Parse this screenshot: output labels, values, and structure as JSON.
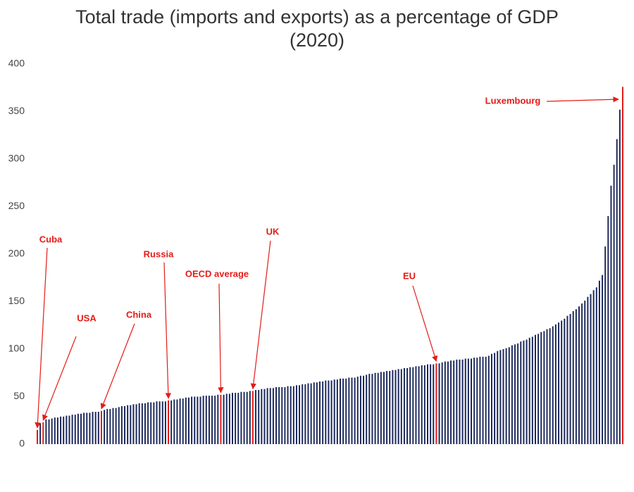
{
  "chart_data": {
    "type": "bar",
    "title": "Total trade (imports and exports) as a percentage of GDP (2020)",
    "color": "#1d2a5c",
    "highlight_color": "#e41b17",
    "values": [
      15,
      22,
      23,
      26,
      26,
      27,
      28,
      28,
      29,
      29,
      30,
      30,
      31,
      31,
      32,
      32,
      33,
      33,
      33,
      34,
      34,
      34,
      35,
      36,
      37,
      37,
      38,
      38,
      39,
      40,
      40,
      41,
      41,
      42,
      42,
      43,
      43,
      43,
      44,
      44,
      44,
      45,
      45,
      45,
      45,
      46,
      46,
      47,
      47,
      48,
      48,
      49,
      49,
      50,
      50,
      50,
      50,
      51,
      51,
      51,
      51,
      51,
      52,
      52,
      52,
      53,
      53,
      54,
      54,
      54,
      55,
      55,
      55,
      56,
      56,
      57,
      57,
      58,
      58,
      59,
      59,
      59,
      60,
      60,
      60,
      60,
      61,
      61,
      61,
      62,
      62,
      63,
      63,
      64,
      64,
      65,
      65,
      66,
      66,
      67,
      67,
      67,
      68,
      68,
      69,
      69,
      69,
      70,
      70,
      70,
      71,
      72,
      72,
      73,
      74,
      74,
      75,
      75,
      76,
      76,
      77,
      77,
      78,
      78,
      79,
      79,
      80,
      80,
      81,
      81,
      82,
      82,
      83,
      83,
      84,
      84,
      84,
      85,
      85,
      86,
      87,
      87,
      88,
      88,
      89,
      89,
      89,
      90,
      90,
      90,
      91,
      91,
      92,
      92,
      92,
      93,
      95,
      96,
      98,
      99,
      100,
      101,
      102,
      104,
      105,
      106,
      108,
      109,
      110,
      112,
      113,
      115,
      116,
      118,
      119,
      121,
      122,
      124,
      126,
      128,
      130,
      132,
      135,
      137,
      140,
      142,
      145,
      148,
      151,
      155,
      158,
      162,
      165,
      172,
      178,
      208,
      240,
      272,
      294,
      321,
      352,
      376
    ],
    "annotations": [
      {
        "text": "Cuba",
        "index": 0
      },
      {
        "text": "USA",
        "index": 2
      },
      {
        "text": "China",
        "index": 22
      },
      {
        "text": "Russia",
        "index": 45
      },
      {
        "text": "OECD average",
        "index": 63
      },
      {
        "text": "UK",
        "index": 74
      },
      {
        "text": "EU",
        "index": 137
      },
      {
        "text": "Luxembourg",
        "index": 201
      }
    ],
    "ylim": [
      0,
      400
    ],
    "yticks": [
      0,
      50,
      100,
      150,
      200,
      250,
      300,
      350,
      400
    ],
    "grid": false
  }
}
